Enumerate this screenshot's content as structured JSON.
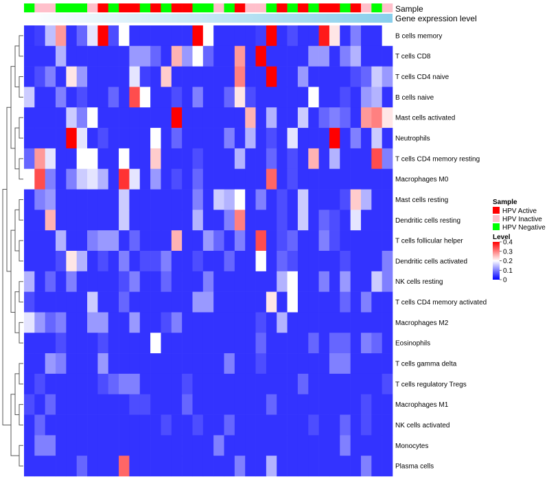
{
  "chart_data": {
    "type": "heatmap",
    "title": "",
    "annotation_labels": [
      "Sample",
      "Gene expression level"
    ],
    "rows": [
      "B cells memory",
      "T cells CD8",
      "T cells CD4 naive",
      "B cells naive",
      "Mast cells activated",
      "Neutrophils",
      "T cells CD4 memory resting",
      "Macrophages M0",
      "Mast cells resting",
      "Dendritic cells resting",
      "T cells follicular helper",
      "Dendritic cells activated",
      "NK cells resting",
      "T cells CD4 memory activated",
      "Macrophages M2",
      "Eosinophils",
      "T cells gamma delta",
      "T cells regulatory  Tregs",
      "Macrophages M1",
      "NK cells activated",
      "Monocytes",
      "Plasma cells"
    ],
    "sample_groups": [
      "N",
      "I",
      "I",
      "N",
      "N",
      "N",
      "I",
      "A",
      "N",
      "A",
      "A",
      "N",
      "A",
      "N",
      "A",
      "A",
      "N",
      "N",
      "I",
      "N",
      "A",
      "I",
      "I",
      "N",
      "A",
      "N",
      "A",
      "N",
      "A",
      "A",
      "N",
      "A",
      "I",
      "N",
      "I"
    ],
    "expression_level_gradient": [
      "#ffffff",
      "#87ceeb"
    ],
    "values": [
      [
        0.04,
        0.05,
        0.15,
        0.28,
        0.04,
        0.08,
        0.18,
        0.4,
        0.06,
        0.2,
        0.04,
        0.04,
        0.04,
        0.04,
        0.04,
        0.04,
        0.4,
        0.2,
        0.04,
        0.04,
        0.04,
        0.04,
        0.05,
        0.4,
        0.04,
        0.06,
        0.04,
        0.04,
        0.38,
        0.22,
        0.04,
        0.1,
        0.04,
        0.04,
        0.2
      ],
      [
        0.04,
        0.04,
        0.04,
        0.14,
        0.04,
        0.04,
        0.04,
        0.04,
        0.04,
        0.04,
        0.12,
        0.12,
        0.08,
        0.04,
        0.26,
        0.12,
        0.2,
        0.08,
        0.04,
        0.04,
        0.28,
        0.04,
        0.4,
        0.04,
        0.04,
        0.04,
        0.04,
        0.12,
        0.12,
        0.04,
        0.1,
        0.14,
        0.04,
        0.04,
        0.04
      ],
      [
        0.04,
        0.06,
        0.1,
        0.04,
        0.22,
        0.12,
        0.04,
        0.04,
        0.04,
        0.04,
        0.18,
        0.05,
        0.04,
        0.24,
        0.04,
        0.04,
        0.04,
        0.04,
        0.04,
        0.04,
        0.3,
        0.04,
        0.04,
        0.4,
        0.04,
        0.04,
        0.12,
        0.04,
        0.04,
        0.04,
        0.04,
        0.06,
        0.08,
        0.16,
        0.12
      ],
      [
        0.16,
        0.04,
        0.04,
        0.1,
        0.04,
        0.06,
        0.04,
        0.04,
        0.08,
        0.04,
        0.34,
        0.2,
        0.04,
        0.04,
        0.06,
        0.04,
        0.1,
        0.04,
        0.04,
        0.08,
        0.22,
        0.06,
        0.04,
        0.04,
        0.04,
        0.04,
        0.04,
        0.2,
        0.04,
        0.04,
        0.06,
        0.04,
        0.12,
        0.14,
        0.04
      ],
      [
        0.04,
        0.04,
        0.04,
        0.04,
        0.16,
        0.1,
        0.2,
        0.04,
        0.04,
        0.04,
        0.04,
        0.04,
        0.04,
        0.04,
        0.4,
        0.04,
        0.04,
        0.04,
        0.04,
        0.04,
        0.04,
        0.26,
        0.04,
        0.14,
        0.04,
        0.04,
        0.16,
        0.04,
        0.08,
        0.1,
        0.08,
        0.04,
        0.28,
        0.3,
        0.22
      ],
      [
        0.04,
        0.04,
        0.04,
        0.04,
        0.4,
        0.18,
        0.04,
        0.06,
        0.04,
        0.04,
        0.04,
        0.04,
        0.2,
        0.04,
        0.08,
        0.04,
        0.04,
        0.04,
        0.04,
        0.1,
        0.04,
        0.14,
        0.04,
        0.06,
        0.04,
        0.18,
        0.04,
        0.04,
        0.04,
        0.4,
        0.04,
        0.1,
        0.04,
        0.16,
        0.04
      ],
      [
        0.08,
        0.28,
        0.18,
        0.04,
        0.04,
        0.2,
        0.2,
        0.04,
        0.04,
        0.2,
        0.04,
        0.04,
        0.24,
        0.04,
        0.04,
        0.04,
        0.06,
        0.04,
        0.04,
        0.04,
        0.14,
        0.04,
        0.04,
        0.08,
        0.04,
        0.06,
        0.04,
        0.26,
        0.04,
        0.14,
        0.04,
        0.04,
        0.04,
        0.34,
        0.1
      ],
      [
        0.2,
        0.34,
        0.1,
        0.04,
        0.1,
        0.16,
        0.18,
        0.14,
        0.04,
        0.36,
        0.18,
        0.04,
        0.12,
        0.04,
        0.06,
        0.04,
        0.08,
        0.04,
        0.04,
        0.04,
        0.04,
        0.04,
        0.04,
        0.32,
        0.04,
        0.06,
        0.04,
        0.04,
        0.04,
        0.04,
        0.04,
        0.04,
        0.04,
        0.04,
        0.04
      ],
      [
        0.04,
        0.1,
        0.12,
        0.04,
        0.04,
        0.04,
        0.04,
        0.04,
        0.04,
        0.16,
        0.04,
        0.04,
        0.04,
        0.04,
        0.04,
        0.04,
        0.1,
        0.04,
        0.16,
        0.14,
        0.2,
        0.04,
        0.1,
        0.04,
        0.06,
        0.04,
        0.16,
        0.04,
        0.04,
        0.04,
        0.06,
        0.24,
        0.14,
        0.04,
        0.04
      ],
      [
        0.04,
        0.04,
        0.26,
        0.04,
        0.04,
        0.04,
        0.04,
        0.04,
        0.04,
        0.16,
        0.04,
        0.04,
        0.04,
        0.04,
        0.04,
        0.04,
        0.14,
        0.04,
        0.04,
        0.1,
        0.3,
        0.04,
        0.04,
        0.04,
        0.06,
        0.04,
        0.16,
        0.04,
        0.08,
        0.06,
        0.04,
        0.18,
        0.04,
        0.04,
        0.04
      ],
      [
        0.04,
        0.04,
        0.04,
        0.14,
        0.04,
        0.04,
        0.1,
        0.12,
        0.12,
        0.04,
        0.08,
        0.04,
        0.04,
        0.04,
        0.26,
        0.04,
        0.04,
        0.12,
        0.08,
        0.04,
        0.1,
        0.04,
        0.34,
        0.04,
        0.06,
        0.08,
        0.04,
        0.04,
        0.1,
        0.06,
        0.04,
        0.04,
        0.04,
        0.04,
        0.04
      ],
      [
        0.04,
        0.04,
        0.04,
        0.06,
        0.22,
        0.14,
        0.04,
        0.06,
        0.04,
        0.1,
        0.04,
        0.06,
        0.06,
        0.1,
        0.04,
        0.04,
        0.06,
        0.04,
        0.04,
        0.08,
        0.04,
        0.04,
        0.2,
        0.04,
        0.08,
        0.06,
        0.04,
        0.04,
        0.04,
        0.04,
        0.06,
        0.04,
        0.04,
        0.04,
        0.1
      ],
      [
        0.14,
        0.04,
        0.08,
        0.04,
        0.1,
        0.04,
        0.04,
        0.04,
        0.04,
        0.06,
        0.1,
        0.04,
        0.04,
        0.08,
        0.04,
        0.04,
        0.04,
        0.1,
        0.04,
        0.04,
        0.04,
        0.04,
        0.04,
        0.04,
        0.14,
        0.2,
        0.04,
        0.04,
        0.1,
        0.04,
        0.12,
        0.04,
        0.04,
        0.16,
        0.1
      ],
      [
        0.06,
        0.04,
        0.04,
        0.04,
        0.04,
        0.04,
        0.16,
        0.04,
        0.04,
        0.08,
        0.04,
        0.04,
        0.04,
        0.04,
        0.04,
        0.04,
        0.12,
        0.12,
        0.04,
        0.04,
        0.04,
        0.04,
        0.04,
        0.22,
        0.04,
        0.2,
        0.04,
        0.04,
        0.04,
        0.04,
        0.08,
        0.04,
        0.1,
        0.04,
        0.04
      ],
      [
        0.18,
        0.12,
        0.08,
        0.1,
        0.04,
        0.04,
        0.12,
        0.12,
        0.04,
        0.04,
        0.12,
        0.04,
        0.04,
        0.06,
        0.1,
        0.04,
        0.04,
        0.04,
        0.04,
        0.04,
        0.04,
        0.04,
        0.06,
        0.04,
        0.14,
        0.04,
        0.04,
        0.04,
        0.04,
        0.04,
        0.04,
        0.04,
        0.04,
        0.04,
        0.04
      ],
      [
        0.04,
        0.04,
        0.04,
        0.06,
        0.04,
        0.04,
        0.04,
        0.06,
        0.04,
        0.04,
        0.04,
        0.04,
        0.2,
        0.04,
        0.04,
        0.04,
        0.04,
        0.04,
        0.04,
        0.04,
        0.04,
        0.04,
        0.08,
        0.04,
        0.04,
        0.04,
        0.04,
        0.08,
        0.04,
        0.08,
        0.08,
        0.04,
        0.1,
        0.08,
        0.04
      ],
      [
        0.04,
        0.04,
        0.12,
        0.1,
        0.04,
        0.04,
        0.04,
        0.12,
        0.04,
        0.04,
        0.04,
        0.04,
        0.04,
        0.04,
        0.04,
        0.04,
        0.04,
        0.04,
        0.04,
        0.1,
        0.04,
        0.04,
        0.06,
        0.04,
        0.04,
        0.04,
        0.04,
        0.04,
        0.04,
        0.1,
        0.1,
        0.04,
        0.04,
        0.04,
        0.04
      ],
      [
        0.04,
        0.06,
        0.04,
        0.04,
        0.04,
        0.04,
        0.04,
        0.06,
        0.08,
        0.1,
        0.1,
        0.04,
        0.04,
        0.04,
        0.04,
        0.06,
        0.04,
        0.04,
        0.04,
        0.04,
        0.04,
        0.04,
        0.04,
        0.04,
        0.04,
        0.04,
        0.08,
        0.04,
        0.04,
        0.04,
        0.04,
        0.04,
        0.04,
        0.04,
        0.06
      ],
      [
        0.06,
        0.04,
        0.08,
        0.04,
        0.04,
        0.04,
        0.04,
        0.04,
        0.04,
        0.04,
        0.06,
        0.06,
        0.04,
        0.04,
        0.04,
        0.08,
        0.04,
        0.04,
        0.04,
        0.04,
        0.04,
        0.04,
        0.04,
        0.08,
        0.04,
        0.04,
        0.04,
        0.04,
        0.04,
        0.04,
        0.04,
        0.04,
        0.06,
        0.04,
        0.04
      ],
      [
        0.04,
        0.08,
        0.04,
        0.04,
        0.04,
        0.04,
        0.04,
        0.04,
        0.04,
        0.04,
        0.04,
        0.04,
        0.04,
        0.06,
        0.04,
        0.04,
        0.06,
        0.04,
        0.04,
        0.08,
        0.04,
        0.04,
        0.04,
        0.04,
        0.04,
        0.04,
        0.04,
        0.06,
        0.04,
        0.04,
        0.08,
        0.04,
        0.06,
        0.04,
        0.04
      ],
      [
        0.04,
        0.1,
        0.1,
        0.04,
        0.04,
        0.04,
        0.04,
        0.04,
        0.04,
        0.04,
        0.04,
        0.04,
        0.04,
        0.04,
        0.04,
        0.04,
        0.04,
        0.04,
        0.1,
        0.04,
        0.04,
        0.04,
        0.04,
        0.04,
        0.04,
        0.04,
        0.04,
        0.04,
        0.04,
        0.04,
        0.1,
        0.04,
        0.04,
        0.04,
        0.04
      ],
      [
        0.04,
        0.04,
        0.04,
        0.04,
        0.04,
        0.08,
        0.04,
        0.04,
        0.04,
        0.32,
        0.04,
        0.04,
        0.04,
        0.04,
        0.04,
        0.04,
        0.04,
        0.04,
        0.04,
        0.04,
        0.1,
        0.04,
        0.04,
        0.14,
        0.04,
        0.04,
        0.04,
        0.04,
        0.04,
        0.04,
        0.04,
        0.04,
        0.1,
        0.04,
        0.04
      ]
    ],
    "legend": {
      "sample_title": "Sample",
      "sample_items": [
        {
          "code": "A",
          "label": "HPV Active",
          "color": "#ff0000"
        },
        {
          "code": "I",
          "label": "HPV Inactive",
          "color": "#ffc0cb"
        },
        {
          "code": "N",
          "label": "HPV Negative",
          "color": "#00ff00"
        }
      ],
      "level_title": "Level",
      "level_ticks": [
        "0.4",
        "0.3",
        "0.2",
        "0.1",
        "0"
      ],
      "level_range": [
        0,
        0.4
      ]
    },
    "color_scale": {
      "low": "#0000ff",
      "mid": "#ffffff",
      "high": "#ff0000"
    }
  }
}
